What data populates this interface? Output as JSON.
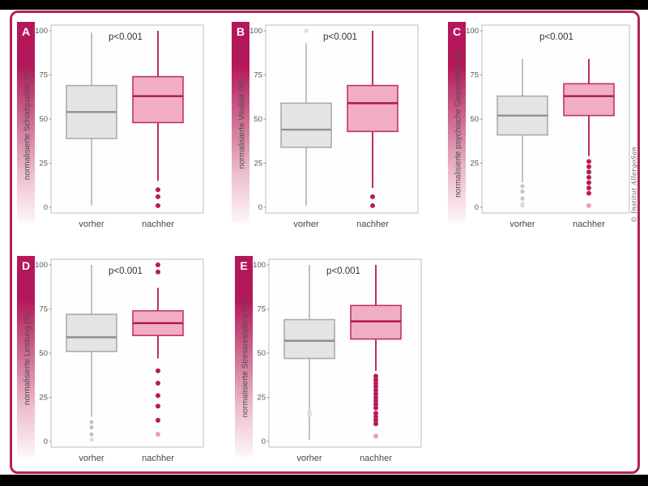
{
  "figure": {
    "copyright": "© Institut AllergoSan"
  },
  "colors": {
    "frame_border": "#b2205c",
    "gradient_top": "#b5185a",
    "gradient_mid": "#cf6f94",
    "gradient_low": "#ecbccd",
    "gradient_bottom": "#fdf6f9",
    "badge_text": "#ffffff",
    "ylabel_text": "#4d4d4d",
    "tick_text": "#555555",
    "xlabel_text": "#474747",
    "annotation_text": "#333333",
    "plot_border": "#c9c9c9",
    "plot_bg": "#fefefe",
    "gray_fill": "#e4e4e4",
    "gray_stroke": "#ababab",
    "gray_median": "#8f8f8f",
    "gray_outlier": "#c4c4c4",
    "gray_outlier_faint": "#dcdcdc",
    "pink_fill": "#f1aec2",
    "pink_stroke": "#c13366",
    "pink_median": "#ad1453",
    "pink_whisker": "#b5175a",
    "pink_outlier": "#b81c5a",
    "pink_outlier_faint": "#e8a0b8"
  },
  "axis": {
    "ylim": [
      0,
      100
    ],
    "yticks": [
      0,
      25,
      50,
      75,
      100
    ],
    "categories": [
      "vorher",
      "nachher"
    ]
  },
  "chart_data": [
    {
      "type": "boxplot",
      "panel": "A",
      "ylabel": "normalisierte Schlafqualität (%)",
      "annotation": "p<0.001",
      "categories": [
        "vorher",
        "nachher"
      ],
      "series": [
        {
          "name": "vorher",
          "style": "gray",
          "whisker_low": 1,
          "q1": 39,
          "median": 54,
          "q3": 69,
          "whisker_high": 99,
          "outliers_low": [],
          "outliers_high": []
        },
        {
          "name": "nachher",
          "style": "pink",
          "whisker_low": 15,
          "q1": 48,
          "median": 63,
          "q3": 74,
          "whisker_high": 100,
          "outliers_low": [
            10,
            6,
            1
          ],
          "outliers_high": []
        }
      ]
    },
    {
      "type": "boxplot",
      "panel": "B",
      "ylabel": "normalisierte Vitalität (%)",
      "annotation": "p<0.001",
      "categories": [
        "vorher",
        "nachher"
      ],
      "series": [
        {
          "name": "vorher",
          "style": "gray",
          "whisker_low": 1,
          "q1": 34,
          "median": 44,
          "q3": 59,
          "whisker_high": 93,
          "outliers_low": [],
          "outliers_high": [],
          "outliers_high_faint": [
            100
          ]
        },
        {
          "name": "nachher",
          "style": "pink",
          "whisker_low": 11,
          "q1": 43,
          "median": 59,
          "q3": 69,
          "whisker_high": 100,
          "outliers_low": [
            6,
            1
          ],
          "outliers_high": []
        }
      ]
    },
    {
      "type": "boxplot",
      "panel": "C",
      "ylabel": "normalisierte psychische Gesundheit (%)",
      "annotation": "p<0.001",
      "categories": [
        "vorher",
        "nachher"
      ],
      "series": [
        {
          "name": "vorher",
          "style": "gray",
          "whisker_low": 14,
          "q1": 41,
          "median": 52,
          "q3": 63,
          "whisker_high": 84,
          "outliers_low": [
            12,
            9,
            5
          ],
          "outliers_low_faint": [
            2,
            1
          ],
          "outliers_high": []
        },
        {
          "name": "nachher",
          "style": "pink",
          "whisker_low": 29,
          "q1": 52,
          "median": 63,
          "q3": 70,
          "whisker_high": 84,
          "outliers_low": [
            26,
            23,
            20,
            17,
            14,
            11,
            8
          ],
          "outliers_low_faint": [
            1
          ],
          "outliers_high": []
        }
      ]
    },
    {
      "type": "boxplot",
      "panel": "D",
      "ylabel": "normalisierte Leistung (%)",
      "annotation": "p<0.001",
      "categories": [
        "vorher",
        "nachher"
      ],
      "series": [
        {
          "name": "vorher",
          "style": "gray",
          "whisker_low": 14,
          "q1": 51,
          "median": 59,
          "q3": 72,
          "whisker_high": 100,
          "outliers_low": [
            11,
            8,
            4
          ],
          "outliers_low_faint": [
            1
          ],
          "outliers_high": []
        },
        {
          "name": "nachher",
          "style": "pink",
          "whisker_low": 47,
          "q1": 60,
          "median": 67,
          "q3": 74,
          "whisker_high": 87,
          "outliers_low": [
            40,
            33,
            26,
            20,
            12
          ],
          "outliers_low_faint": [
            4
          ],
          "outliers_high": [
            100,
            96
          ]
        }
      ]
    },
    {
      "type": "boxplot",
      "panel": "E",
      "ylabel": "normalisierte Stressresistenz (%)",
      "annotation": "p<0.001",
      "categories": [
        "vorher",
        "nachher"
      ],
      "series": [
        {
          "name": "vorher",
          "style": "gray",
          "whisker_low": 1,
          "q1": 47,
          "median": 57,
          "q3": 69,
          "whisker_high": 100,
          "outliers_low": [],
          "outliers_low_faint": [
            17,
            16,
            15
          ],
          "outliers_high": []
        },
        {
          "name": "nachher",
          "style": "pink",
          "whisker_low": 40,
          "q1": 58,
          "median": 68,
          "q3": 77,
          "whisker_high": 100,
          "outliers_low": [
            37,
            35,
            33,
            31,
            29,
            27,
            25,
            23,
            21,
            19,
            16,
            14,
            12,
            10
          ],
          "outliers_low_faint": [
            3
          ],
          "outliers_high": []
        }
      ]
    }
  ]
}
